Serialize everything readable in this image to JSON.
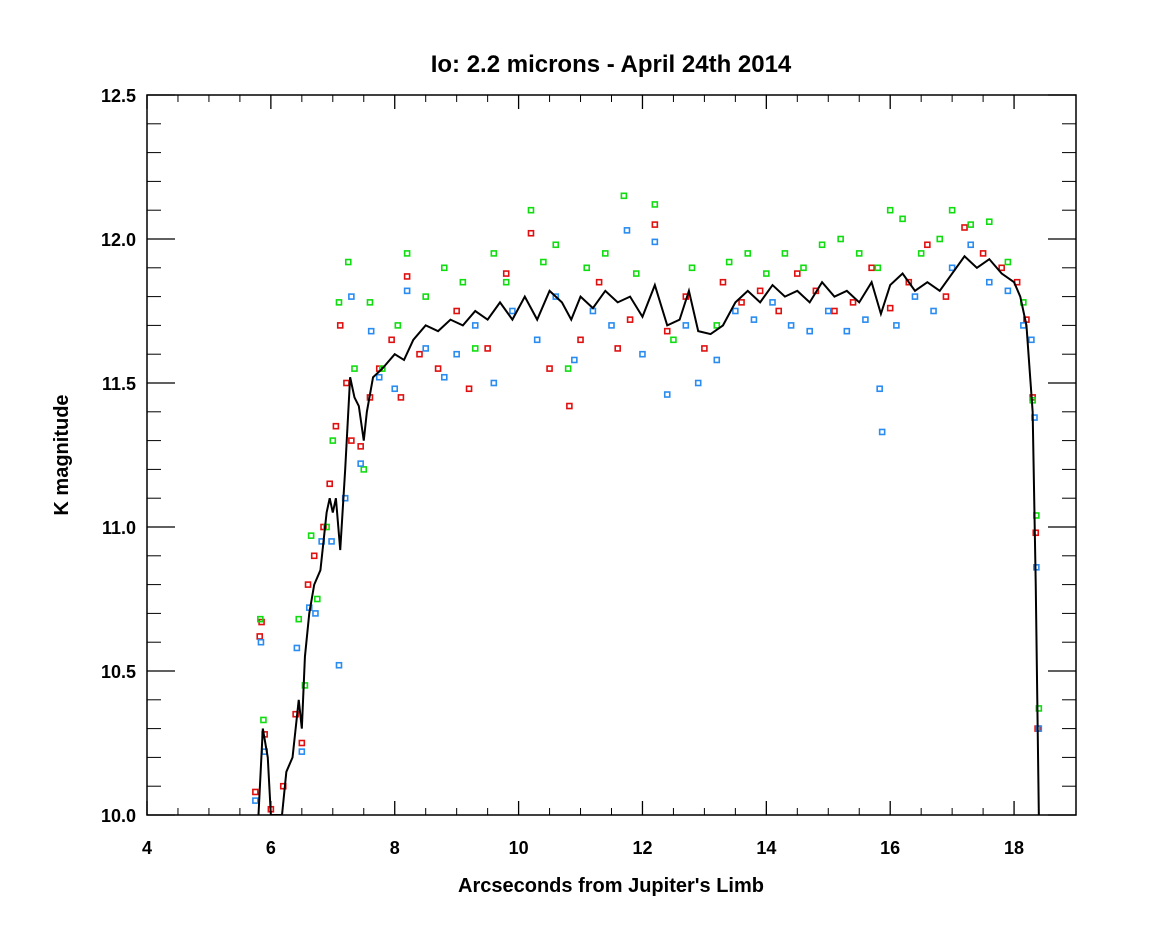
{
  "chart_data": {
    "type": "scatter",
    "title": "Io: 2.2 microns - April 24th 2014",
    "x_label": "Arcseconds from Jupiter's Limb",
    "y_label": "K magnitude",
    "xlim": [
      4,
      19
    ],
    "ylim": [
      10,
      12.5
    ],
    "xticks": [
      4,
      6,
      8,
      10,
      12,
      14,
      16,
      18
    ],
    "yticks": [
      {
        "value": 10,
        "label": "10.0"
      },
      {
        "value": 10.5,
        "label": "10.5"
      },
      {
        "value": 11,
        "label": "11.0"
      },
      {
        "value": 11.5,
        "label": "11.5"
      },
      {
        "value": 12,
        "label": "12.0"
      },
      {
        "value": 12.5,
        "label": "12.5"
      }
    ],
    "series": [
      {
        "color": "#e01010",
        "x": [
          5.75,
          5.82,
          5.85,
          5.9,
          6.0,
          6.2,
          6.4,
          6.5,
          6.6,
          6.7,
          6.85,
          6.95,
          7.05,
          7.12,
          7.22,
          7.3,
          7.45,
          7.6,
          7.75,
          7.95,
          8.2,
          8.1,
          8.4,
          8.7,
          9.0,
          9.2,
          9.5,
          9.8,
          10.2,
          10.5,
          10.82,
          11.0,
          11.3,
          11.6,
          11.8,
          12.2,
          12.4,
          12.7,
          13.0,
          13.3,
          13.6,
          13.9,
          14.2,
          14.5,
          14.8,
          15.1,
          15.4,
          15.7,
          16.0,
          16.3,
          16.6,
          16.9,
          17.2,
          17.5,
          17.8,
          18.05,
          18.2,
          18.3,
          18.35,
          18.38
        ],
        "values": [
          10.08,
          10.62,
          10.67,
          10.28,
          10.02,
          10.1,
          10.35,
          10.25,
          10.8,
          10.9,
          11.0,
          11.15,
          11.35,
          11.7,
          11.5,
          11.3,
          11.28,
          11.45,
          11.55,
          11.65,
          11.87,
          11.45,
          11.6,
          11.55,
          11.75,
          11.48,
          11.62,
          11.88,
          12.02,
          11.55,
          11.42,
          11.65,
          11.85,
          11.62,
          11.72,
          12.05,
          11.68,
          11.8,
          11.62,
          11.85,
          11.78,
          11.82,
          11.75,
          11.88,
          11.82,
          11.75,
          11.78,
          11.9,
          11.76,
          11.85,
          11.98,
          11.8,
          12.04,
          11.95,
          11.9,
          11.85,
          11.72,
          11.45,
          10.98,
          10.3
        ]
      },
      {
        "color": "#10dd10",
        "x": [
          5.83,
          5.88,
          6.45,
          6.55,
          6.65,
          6.75,
          6.9,
          7.0,
          7.1,
          7.25,
          7.35,
          7.5,
          7.6,
          7.8,
          8.05,
          8.2,
          8.5,
          8.8,
          9.1,
          9.3,
          9.6,
          9.8,
          10.2,
          10.4,
          10.6,
          10.8,
          11.1,
          11.4,
          11.7,
          11.9,
          12.2,
          12.5,
          12.8,
          13.2,
          13.4,
          13.7,
          14.0,
          14.3,
          14.6,
          14.9,
          15.2,
          15.5,
          15.8,
          16.0,
          16.2,
          16.5,
          16.8,
          17.0,
          17.3,
          17.6,
          17.9,
          18.15,
          18.3,
          18.36,
          18.4
        ],
        "values": [
          10.68,
          10.33,
          10.68,
          10.45,
          10.97,
          10.75,
          11.0,
          11.3,
          11.78,
          11.92,
          11.55,
          11.2,
          11.78,
          11.55,
          11.7,
          11.95,
          11.8,
          11.9,
          11.85,
          11.62,
          11.95,
          11.85,
          12.1,
          11.92,
          11.98,
          11.55,
          11.9,
          11.95,
          12.15,
          11.88,
          12.12,
          11.65,
          11.9,
          11.7,
          11.92,
          11.95,
          11.88,
          11.95,
          11.9,
          11.98,
          12.0,
          11.95,
          11.9,
          12.1,
          12.07,
          11.95,
          12.0,
          12.1,
          12.05,
          12.06,
          11.92,
          11.78,
          11.44,
          11.04,
          10.37
        ]
      },
      {
        "color": "#2a8cf0",
        "x": [
          5.75,
          5.84,
          5.9,
          6.42,
          6.5,
          6.62,
          6.72,
          6.82,
          6.98,
          7.1,
          7.2,
          7.3,
          7.45,
          7.62,
          7.75,
          8.0,
          8.2,
          8.5,
          8.8,
          9.0,
          9.3,
          9.6,
          9.9,
          10.3,
          10.6,
          10.9,
          11.2,
          11.5,
          11.75,
          12.0,
          12.2,
          12.4,
          12.7,
          12.9,
          13.2,
          13.5,
          13.8,
          14.1,
          14.4,
          14.7,
          15.0,
          15.3,
          15.6,
          15.83,
          15.87,
          16.1,
          16.4,
          16.7,
          17.0,
          17.3,
          17.6,
          17.9,
          18.15,
          18.28,
          18.33,
          18.36,
          18.4
        ],
        "values": [
          10.05,
          10.6,
          10.22,
          10.58,
          10.22,
          10.72,
          10.7,
          10.95,
          10.95,
          10.52,
          11.1,
          11.8,
          11.22,
          11.68,
          11.52,
          11.48,
          11.82,
          11.62,
          11.52,
          11.6,
          11.7,
          11.5,
          11.75,
          11.65,
          11.8,
          11.58,
          11.75,
          11.7,
          12.03,
          11.6,
          11.99,
          11.46,
          11.7,
          11.5,
          11.58,
          11.75,
          11.72,
          11.78,
          11.7,
          11.68,
          11.75,
          11.68,
          11.72,
          11.48,
          11.33,
          11.7,
          11.8,
          11.75,
          11.9,
          11.98,
          11.85,
          11.82,
          11.7,
          11.65,
          11.38,
          10.86,
          10.3
        ]
      }
    ],
    "line": {
      "color": "#000000",
      "x": [
        5.8,
        5.87,
        5.95,
        6.0,
        6.18,
        6.25,
        6.35,
        6.45,
        6.5,
        6.55,
        6.62,
        6.7,
        6.8,
        6.9,
        6.95,
        7.0,
        7.05,
        7.12,
        7.2,
        7.28,
        7.35,
        7.42,
        7.5,
        7.55,
        7.65,
        7.8,
        8.0,
        8.15,
        8.3,
        8.5,
        8.7,
        8.9,
        9.1,
        9.3,
        9.5,
        9.7,
        9.9,
        10.1,
        10.3,
        10.5,
        10.7,
        10.85,
        11.0,
        11.2,
        11.4,
        11.6,
        11.8,
        12.0,
        12.2,
        12.4,
        12.6,
        12.75,
        12.9,
        13.1,
        13.3,
        13.5,
        13.7,
        13.9,
        14.1,
        14.3,
        14.5,
        14.7,
        14.9,
        15.1,
        15.3,
        15.5,
        15.7,
        15.85,
        16.0,
        16.2,
        16.4,
        16.6,
        16.8,
        17.0,
        17.2,
        17.4,
        17.6,
        17.8,
        18.0,
        18.1,
        18.2,
        18.3,
        18.35,
        18.4
      ],
      "values": [
        10.0,
        10.3,
        10.2,
        10.0,
        10.0,
        10.15,
        10.2,
        10.4,
        10.3,
        10.55,
        10.7,
        10.8,
        10.85,
        11.05,
        11.1,
        11.05,
        11.1,
        10.92,
        11.2,
        11.52,
        11.45,
        11.42,
        11.3,
        11.4,
        11.52,
        11.55,
        11.6,
        11.58,
        11.65,
        11.7,
        11.68,
        11.72,
        11.7,
        11.75,
        11.72,
        11.78,
        11.72,
        11.8,
        11.72,
        11.82,
        11.78,
        11.72,
        11.8,
        11.76,
        11.82,
        11.78,
        11.8,
        11.73,
        11.84,
        11.7,
        11.72,
        11.82,
        11.68,
        11.67,
        11.7,
        11.78,
        11.82,
        11.78,
        11.84,
        11.8,
        11.82,
        11.78,
        11.85,
        11.8,
        11.82,
        11.78,
        11.85,
        11.74,
        11.84,
        11.88,
        11.82,
        11.85,
        11.82,
        11.88,
        11.94,
        11.9,
        11.93,
        11.88,
        11.85,
        11.8,
        11.7,
        11.4,
        10.8,
        10.0
      ]
    }
  }
}
